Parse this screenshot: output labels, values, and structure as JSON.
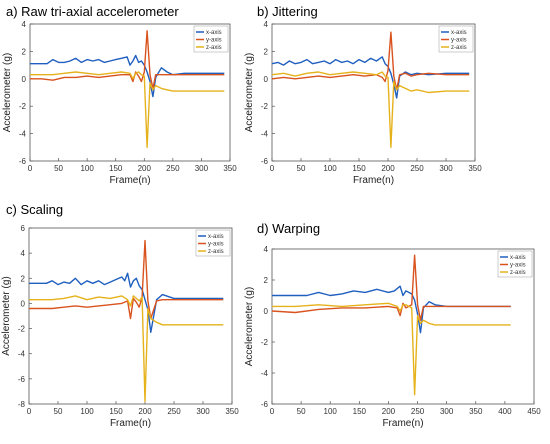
{
  "chart_data": [
    {
      "type": "line",
      "title": "a) Raw tri-axial accelerometer",
      "xlabel": "Frame(n)",
      "ylabel": "Accelerometer (g)",
      "xlim": [
        0,
        350
      ],
      "ylim": [
        -6,
        4
      ],
      "xticks": [
        0,
        50,
        100,
        150,
        200,
        250,
        300,
        350
      ],
      "yticks": [
        -6,
        -4,
        -2,
        0,
        2,
        4
      ],
      "grid": false,
      "legend_position": "top-right",
      "series": [
        {
          "name": "x-axis",
          "color": "#1f5fbf",
          "x": [
            0,
            10,
            20,
            30,
            40,
            50,
            60,
            70,
            80,
            90,
            100,
            110,
            120,
            130,
            140,
            150,
            160,
            170,
            175,
            180,
            185,
            190,
            195,
            200,
            205,
            210,
            215,
            220,
            230,
            240,
            250,
            270,
            300,
            340
          ],
          "y": [
            1.1,
            1.1,
            1.1,
            1.1,
            1.4,
            1.2,
            1.2,
            1.3,
            1.5,
            1.2,
            1.4,
            1.3,
            1.4,
            1.2,
            1.3,
            1.4,
            1.5,
            1.6,
            1.0,
            1.3,
            1.7,
            1.2,
            1.3,
            1.0,
            0.5,
            -0.2,
            -1.3,
            0.1,
            0.8,
            0.5,
            0.3,
            0.4,
            0.4,
            0.4
          ]
        },
        {
          "name": "y-axis",
          "color": "#d9531e",
          "x": [
            0,
            20,
            40,
            60,
            80,
            100,
            120,
            140,
            160,
            175,
            180,
            185,
            190,
            195,
            200,
            205,
            210,
            215,
            220,
            230,
            240,
            250,
            270,
            300,
            340
          ],
          "y": [
            0.0,
            0.0,
            -0.1,
            0.1,
            0.1,
            0.2,
            0.1,
            0.2,
            0.3,
            0.3,
            -0.2,
            0.5,
            0.2,
            -0.2,
            0.5,
            3.5,
            0.3,
            -0.7,
            0.3,
            0.3,
            0.3,
            0.3,
            0.3,
            0.3,
            0.3
          ]
        },
        {
          "name": "z-axis",
          "color": "#e6b21c",
          "x": [
            0,
            20,
            40,
            60,
            80,
            100,
            120,
            140,
            160,
            175,
            180,
            185,
            190,
            195,
            200,
            205,
            210,
            215,
            220,
            230,
            240,
            250,
            270,
            300,
            340
          ],
          "y": [
            0.3,
            0.3,
            0.3,
            0.4,
            0.5,
            0.4,
            0.3,
            0.4,
            0.5,
            0.4,
            0.0,
            0.4,
            0.5,
            0.3,
            0.2,
            -5.0,
            -0.3,
            -0.8,
            -0.5,
            -0.7,
            -0.8,
            -0.9,
            -0.9,
            -0.9,
            -0.9
          ]
        }
      ]
    },
    {
      "type": "line",
      "title": "b) Jittering",
      "xlabel": "Frame(n)",
      "ylabel": "Accelerometer (g)",
      "xlim": [
        0,
        350
      ],
      "ylim": [
        -6,
        4
      ],
      "xticks": [
        0,
        50,
        100,
        150,
        200,
        250,
        300,
        350
      ],
      "yticks": [
        -6,
        -4,
        -2,
        0,
        2,
        4
      ],
      "grid": false,
      "legend_position": "top-right",
      "series": [
        {
          "name": "x-axis",
          "color": "#1f5fbf",
          "x": [
            0,
            10,
            20,
            30,
            40,
            50,
            60,
            70,
            80,
            90,
            100,
            110,
            120,
            130,
            140,
            150,
            160,
            170,
            180,
            190,
            195,
            200,
            205,
            210,
            215,
            220,
            230,
            240,
            250,
            270,
            300,
            340
          ],
          "y": [
            1.1,
            1.2,
            1.0,
            1.3,
            1.1,
            1.2,
            1.4,
            1.1,
            1.2,
            1.3,
            1.1,
            1.4,
            1.2,
            1.3,
            1.1,
            1.4,
            1.2,
            1.5,
            1.3,
            1.6,
            1.1,
            0.9,
            0.4,
            -0.4,
            -1.4,
            0.2,
            0.5,
            0.3,
            0.4,
            0.3,
            0.4,
            0.4
          ]
        },
        {
          "name": "y-axis",
          "color": "#d9531e",
          "x": [
            0,
            20,
            40,
            60,
            80,
            100,
            120,
            140,
            160,
            180,
            190,
            195,
            200,
            205,
            210,
            215,
            220,
            230,
            240,
            250,
            270,
            300,
            340
          ],
          "y": [
            0.0,
            0.1,
            0.0,
            0.1,
            0.2,
            0.1,
            0.2,
            0.3,
            0.2,
            0.3,
            0.1,
            -0.2,
            0.6,
            3.4,
            0.2,
            -0.8,
            0.3,
            0.4,
            0.2,
            0.3,
            0.4,
            0.3,
            0.3
          ]
        },
        {
          "name": "z-axis",
          "color": "#e6b21c",
          "x": [
            0,
            20,
            40,
            60,
            80,
            100,
            120,
            140,
            160,
            180,
            190,
            195,
            200,
            205,
            210,
            215,
            220,
            230,
            240,
            250,
            270,
            300,
            340
          ],
          "y": [
            0.3,
            0.4,
            0.2,
            0.4,
            0.5,
            0.3,
            0.4,
            0.5,
            0.4,
            0.3,
            0.5,
            0.2,
            0.1,
            -5.0,
            -0.2,
            -0.8,
            -0.5,
            -0.7,
            -0.9,
            -0.8,
            -1.0,
            -0.9,
            -0.9
          ]
        }
      ]
    },
    {
      "type": "line",
      "title": "c) Scaling",
      "xlabel": "Frame(n)",
      "ylabel": "Accelerometer (g)",
      "xlim": [
        0,
        350
      ],
      "ylim": [
        -8,
        6
      ],
      "xticks": [
        0,
        50,
        100,
        150,
        200,
        250,
        300,
        350
      ],
      "yticks": [
        -8,
        -6,
        -4,
        -2,
        0,
        2,
        4,
        6
      ],
      "grid": false,
      "legend_position": "top-right",
      "series": [
        {
          "name": "x-axis",
          "color": "#1f5fbf",
          "x": [
            0,
            10,
            20,
            30,
            40,
            50,
            60,
            70,
            80,
            90,
            100,
            110,
            120,
            130,
            140,
            150,
            160,
            165,
            170,
            175,
            180,
            185,
            190,
            195,
            200,
            205,
            210,
            220,
            230,
            250,
            300,
            335
          ],
          "y": [
            1.6,
            1.6,
            1.6,
            1.6,
            1.8,
            1.5,
            1.7,
            1.6,
            2.0,
            1.5,
            1.8,
            1.6,
            1.8,
            1.5,
            1.7,
            1.9,
            2.1,
            1.8,
            2.4,
            1.3,
            1.8,
            2.0,
            1.4,
            1.1,
            0.3,
            -0.5,
            -2.3,
            0.3,
            0.7,
            0.4,
            0.4,
            0.4
          ]
        },
        {
          "name": "y-axis",
          "color": "#d9531e",
          "x": [
            0,
            20,
            40,
            60,
            80,
            100,
            120,
            140,
            160,
            170,
            175,
            180,
            185,
            190,
            195,
            200,
            205,
            210,
            220,
            230,
            250,
            300,
            335
          ],
          "y": [
            -0.4,
            -0.4,
            -0.4,
            -0.3,
            -0.2,
            -0.3,
            -0.2,
            -0.1,
            0.0,
            0.2,
            -1.2,
            0.4,
            0.1,
            -0.3,
            0.5,
            5.0,
            0.2,
            -1.2,
            0.2,
            0.3,
            0.3,
            0.3,
            0.3
          ]
        },
        {
          "name": "z-axis",
          "color": "#e6b21c",
          "x": [
            0,
            20,
            40,
            60,
            80,
            100,
            120,
            140,
            160,
            170,
            175,
            180,
            185,
            190,
            195,
            200,
            205,
            210,
            220,
            230,
            250,
            300,
            335
          ],
          "y": [
            0.3,
            0.3,
            0.3,
            0.4,
            0.6,
            0.3,
            0.5,
            0.4,
            0.6,
            0.3,
            -0.2,
            0.6,
            0.4,
            0.2,
            0.5,
            -7.8,
            -0.4,
            -1.2,
            -1.5,
            -1.7,
            -1.7,
            -1.7,
            -1.7
          ]
        }
      ]
    },
    {
      "type": "line",
      "title": "d) Warping",
      "xlabel": "Frame(n)",
      "ylabel": "Accelerometer (g)",
      "xlim": [
        0,
        450
      ],
      "ylim": [
        -6,
        4
      ],
      "xticks": [
        0,
        50,
        100,
        150,
        200,
        250,
        300,
        350,
        400,
        450
      ],
      "yticks": [
        -6,
        -4,
        -2,
        0,
        2,
        4
      ],
      "grid": false,
      "legend_position": "top-right",
      "series": [
        {
          "name": "x-axis",
          "color": "#1f5fbf",
          "x": [
            0,
            20,
            40,
            60,
            80,
            100,
            120,
            140,
            160,
            180,
            200,
            210,
            220,
            225,
            230,
            240,
            245,
            250,
            255,
            260,
            270,
            280,
            300,
            350,
            410
          ],
          "y": [
            1.0,
            1.0,
            1.0,
            1.0,
            1.2,
            1.0,
            1.1,
            1.3,
            1.2,
            1.4,
            1.2,
            1.3,
            1.6,
            1.0,
            1.3,
            1.1,
            0.7,
            -0.2,
            -1.4,
            0.2,
            0.6,
            0.4,
            0.3,
            0.3,
            0.3
          ]
        },
        {
          "name": "y-axis",
          "color": "#d9531e",
          "x": [
            0,
            40,
            80,
            120,
            160,
            200,
            215,
            220,
            225,
            230,
            240,
            245,
            250,
            255,
            260,
            270,
            280,
            300,
            350,
            410
          ],
          "y": [
            0.0,
            -0.1,
            0.1,
            0.2,
            0.2,
            0.3,
            0.2,
            -0.3,
            0.5,
            0.2,
            0.4,
            3.6,
            0.4,
            -0.6,
            0.3,
            0.3,
            0.3,
            0.3,
            0.3,
            0.3
          ]
        },
        {
          "name": "z-axis",
          "color": "#e6b21c",
          "x": [
            0,
            40,
            80,
            120,
            160,
            200,
            215,
            220,
            225,
            230,
            240,
            245,
            250,
            255,
            260,
            270,
            280,
            300,
            350,
            410
          ],
          "y": [
            0.3,
            0.3,
            0.4,
            0.3,
            0.4,
            0.5,
            0.3,
            0.0,
            0.4,
            0.4,
            0.2,
            -5.4,
            -0.3,
            -0.8,
            -0.6,
            -0.8,
            -0.9,
            -0.9,
            -0.9,
            -0.9
          ]
        }
      ]
    }
  ]
}
